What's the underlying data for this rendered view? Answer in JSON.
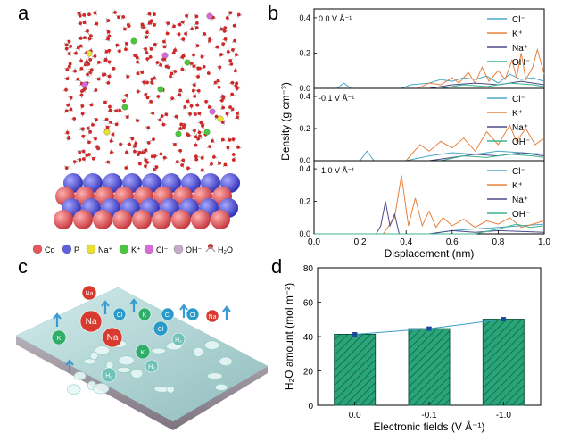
{
  "panels": {
    "a": "a",
    "b": "b",
    "c": "c",
    "d": "d"
  },
  "legend_a": [
    {
      "label": "Co",
      "color": "#e4585c"
    },
    {
      "label": "P",
      "color": "#5f5fe0"
    },
    {
      "label": "Na⁺",
      "color": "#e8e030"
    },
    {
      "label": "K⁺",
      "color": "#4cc63c"
    },
    {
      "label": "Cl⁻",
      "color": "#d86ad8"
    },
    {
      "label": "OH⁻",
      "color": "#c9a9c9"
    },
    {
      "label": "H₂O",
      "color": "#c03030"
    }
  ],
  "ions_c": [
    {
      "label": "Na",
      "color": "#d83a30"
    },
    {
      "label": "Cl",
      "color": "#2a9bc8"
    },
    {
      "label": "K",
      "color": "#2fae6a"
    },
    {
      "label": "H₂",
      "color": "#6fc2b8"
    }
  ],
  "chart_data": [
    {
      "type": "line",
      "panel": "b",
      "xlabel": "Displacement (nm)",
      "ylabel": "Density (g cm⁻³)",
      "xlim": [
        0.0,
        1.0
      ],
      "x_ticks": [
        "0.0",
        "0.2",
        "0.4",
        "0.6",
        "0.8",
        "1.0"
      ],
      "subplots": [
        {
          "annotation": "0.0 V Å⁻¹",
          "ylim": [
            0,
            0.45
          ],
          "y_ticks": [
            "0.0",
            "0.2",
            "0.4"
          ],
          "series": [
            {
              "name": "Cl⁻",
              "color": "#4aa8c8",
              "points": [
                [
                  0.0,
                  0
                ],
                [
                  0.05,
                  0
                ],
                [
                  0.1,
                  0
                ],
                [
                  0.13,
                  0.03
                ],
                [
                  0.16,
                  0
                ],
                [
                  0.2,
                  0
                ],
                [
                  0.3,
                  0
                ],
                [
                  0.38,
                  0
                ],
                [
                  0.42,
                  0.02
                ],
                [
                  0.5,
                  0.03
                ],
                [
                  0.55,
                  0.05
                ],
                [
                  0.6,
                  0.04
                ],
                [
                  0.65,
                  0.06
                ],
                [
                  0.7,
                  0.05
                ],
                [
                  0.75,
                  0.07
                ],
                [
                  0.8,
                  0.03
                ],
                [
                  0.85,
                  0.08
                ],
                [
                  0.9,
                  0.05
                ],
                [
                  0.95,
                  0.06
                ],
                [
                  1.0,
                  0.04
                ]
              ]
            },
            {
              "name": "K⁺",
              "color": "#e8803c",
              "points": [
                [
                  0.0,
                  0
                ],
                [
                  0.3,
                  0
                ],
                [
                  0.45,
                  0
                ],
                [
                  0.5,
                  0.03
                ],
                [
                  0.55,
                  0.02
                ],
                [
                  0.6,
                  0.06
                ],
                [
                  0.63,
                  0.03
                ],
                [
                  0.67,
                  0.09
                ],
                [
                  0.7,
                  0.03
                ],
                [
                  0.73,
                  0.12
                ],
                [
                  0.76,
                  0.04
                ],
                [
                  0.8,
                  0.1
                ],
                [
                  0.83,
                  0.05
                ],
                [
                  0.86,
                  0.16
                ],
                [
                  0.88,
                  0.06
                ],
                [
                  0.9,
                  0.2
                ],
                [
                  0.92,
                  0.05
                ],
                [
                  0.95,
                  0.12
                ],
                [
                  0.97,
                  0.22
                ],
                [
                  1.0,
                  0.08
                ]
              ]
            },
            {
              "name": "Na⁺",
              "color": "#4a4a8a",
              "points": [
                [
                  0.0,
                  0
                ],
                [
                  0.5,
                  0
                ],
                [
                  0.6,
                  0.02
                ],
                [
                  0.7,
                  0.03
                ],
                [
                  0.8,
                  0.02
                ],
                [
                  0.9,
                  0.04
                ],
                [
                  1.0,
                  0.02
                ]
              ]
            },
            {
              "name": "OH⁻",
              "color": "#3cb48c",
              "points": [
                [
                  0.0,
                  0
                ],
                [
                  0.55,
                  0
                ],
                [
                  0.65,
                  0.02
                ],
                [
                  0.75,
                  0.01
                ],
                [
                  0.85,
                  0.03
                ],
                [
                  0.95,
                  0.02
                ],
                [
                  1.0,
                  0.01
                ]
              ]
            }
          ]
        },
        {
          "annotation": "-0.1 V Å⁻¹",
          "ylim": [
            0,
            0.45
          ],
          "y_ticks": [
            "0.0",
            "0.2",
            "0.4"
          ],
          "series": [
            {
              "name": "Cl⁻",
              "color": "#4aa8c8",
              "points": [
                [
                  0.0,
                  0
                ],
                [
                  0.15,
                  0
                ],
                [
                  0.2,
                  0
                ],
                [
                  0.23,
                  0.06
                ],
                [
                  0.26,
                  0
                ],
                [
                  0.4,
                  0
                ],
                [
                  0.5,
                  0.03
                ],
                [
                  0.6,
                  0.05
                ],
                [
                  0.7,
                  0.04
                ],
                [
                  0.8,
                  0.06
                ],
                [
                  0.9,
                  0.05
                ],
                [
                  1.0,
                  0.04
                ]
              ]
            },
            {
              "name": "K⁺",
              "color": "#e8803c",
              "points": [
                [
                  0.0,
                  0
                ],
                [
                  0.4,
                  0
                ],
                [
                  0.43,
                  0.05
                ],
                [
                  0.46,
                  0.1
                ],
                [
                  0.5,
                  0.06
                ],
                [
                  0.55,
                  0.12
                ],
                [
                  0.6,
                  0.08
                ],
                [
                  0.65,
                  0.14
                ],
                [
                  0.7,
                  0.06
                ],
                [
                  0.75,
                  0.18
                ],
                [
                  0.8,
                  0.1
                ],
                [
                  0.85,
                  0.22
                ],
                [
                  0.88,
                  0.12
                ],
                [
                  0.92,
                  0.2
                ],
                [
                  0.96,
                  0.1
                ],
                [
                  1.0,
                  0.14
                ]
              ]
            },
            {
              "name": "Na⁺",
              "color": "#4a4a8a",
              "points": [
                [
                  0.0,
                  0
                ],
                [
                  0.5,
                  0
                ],
                [
                  0.6,
                  0.02
                ],
                [
                  0.7,
                  0.04
                ],
                [
                  0.8,
                  0.03
                ],
                [
                  0.9,
                  0.05
                ],
                [
                  1.0,
                  0.03
                ]
              ]
            },
            {
              "name": "OH⁻",
              "color": "#3cb48c",
              "points": [
                [
                  0.0,
                  0
                ],
                [
                  0.55,
                  0
                ],
                [
                  0.65,
                  0.03
                ],
                [
                  0.75,
                  0.02
                ],
                [
                  0.85,
                  0.04
                ],
                [
                  0.95,
                  0.03
                ],
                [
                  1.0,
                  0.02
                ]
              ]
            }
          ]
        },
        {
          "annotation": "-1.0 V Å⁻¹",
          "ylim": [
            0,
            0.45
          ],
          "y_ticks": [
            "0.0",
            "0.2",
            "0.4"
          ],
          "series": [
            {
              "name": "Cl⁻",
              "color": "#4aa8c8",
              "points": [
                [
                  0.0,
                  0
                ],
                [
                  0.5,
                  0
                ],
                [
                  0.6,
                  0.02
                ],
                [
                  0.7,
                  0.03
                ],
                [
                  0.8,
                  0.04
                ],
                [
                  0.9,
                  0.05
                ],
                [
                  1.0,
                  0.06
                ]
              ]
            },
            {
              "name": "K⁺",
              "color": "#e8803c",
              "points": [
                [
                  0.0,
                  0
                ],
                [
                  0.3,
                  0
                ],
                [
                  0.35,
                  0.1
                ],
                [
                  0.38,
                  0.36
                ],
                [
                  0.41,
                  0.05
                ],
                [
                  0.44,
                  0.22
                ],
                [
                  0.47,
                  0.05
                ],
                [
                  0.5,
                  0.14
                ],
                [
                  0.53,
                  0.04
                ],
                [
                  0.56,
                  0.1
                ],
                [
                  0.6,
                  0.05
                ],
                [
                  0.65,
                  0.09
                ],
                [
                  0.7,
                  0.04
                ],
                [
                  0.75,
                  0.08
                ],
                [
                  0.8,
                  0.06
                ],
                [
                  0.85,
                  0.1
                ],
                [
                  0.9,
                  0.04
                ],
                [
                  0.95,
                  0.06
                ],
                [
                  1.0,
                  0.08
                ]
              ]
            },
            {
              "name": "Na⁺",
              "color": "#4a4a8a",
              "points": [
                [
                  0.0,
                  0
                ],
                [
                  0.27,
                  0
                ],
                [
                  0.29,
                  0.05
                ],
                [
                  0.31,
                  0.2
                ],
                [
                  0.33,
                  0.05
                ],
                [
                  0.35,
                  0.12
                ],
                [
                  0.37,
                  0
                ],
                [
                  0.5,
                  0
                ],
                [
                  0.6,
                  0.02
                ],
                [
                  0.7,
                  0.01
                ],
                [
                  0.8,
                  0.02
                ],
                [
                  1.0,
                  0.01
                ]
              ]
            },
            {
              "name": "OH⁻",
              "color": "#3cb48c",
              "points": [
                [
                  0.0,
                  0
                ],
                [
                  0.7,
                  0
                ],
                [
                  0.8,
                  0.03
                ],
                [
                  0.88,
                  0.06
                ],
                [
                  0.94,
                  0.04
                ],
                [
                  1.0,
                  0.05
                ]
              ]
            }
          ]
        }
      ]
    },
    {
      "type": "bar",
      "panel": "d",
      "categories": [
        "0.0",
        "-0.1",
        "-1.0"
      ],
      "values": [
        41.3,
        44.6,
        50.1
      ],
      "errors": [
        0.8,
        0.7,
        0.8
      ],
      "xlabel": "Electronic fields (V Å⁻¹)",
      "ylabel": "H₂O amount (mol m⁻²)",
      "ylim": [
        0,
        80
      ],
      "y_ticks": [
        "0",
        "20",
        "40",
        "60",
        "80"
      ],
      "bar_color": "#2aa57a",
      "line_color": "#3a9fc8"
    }
  ]
}
